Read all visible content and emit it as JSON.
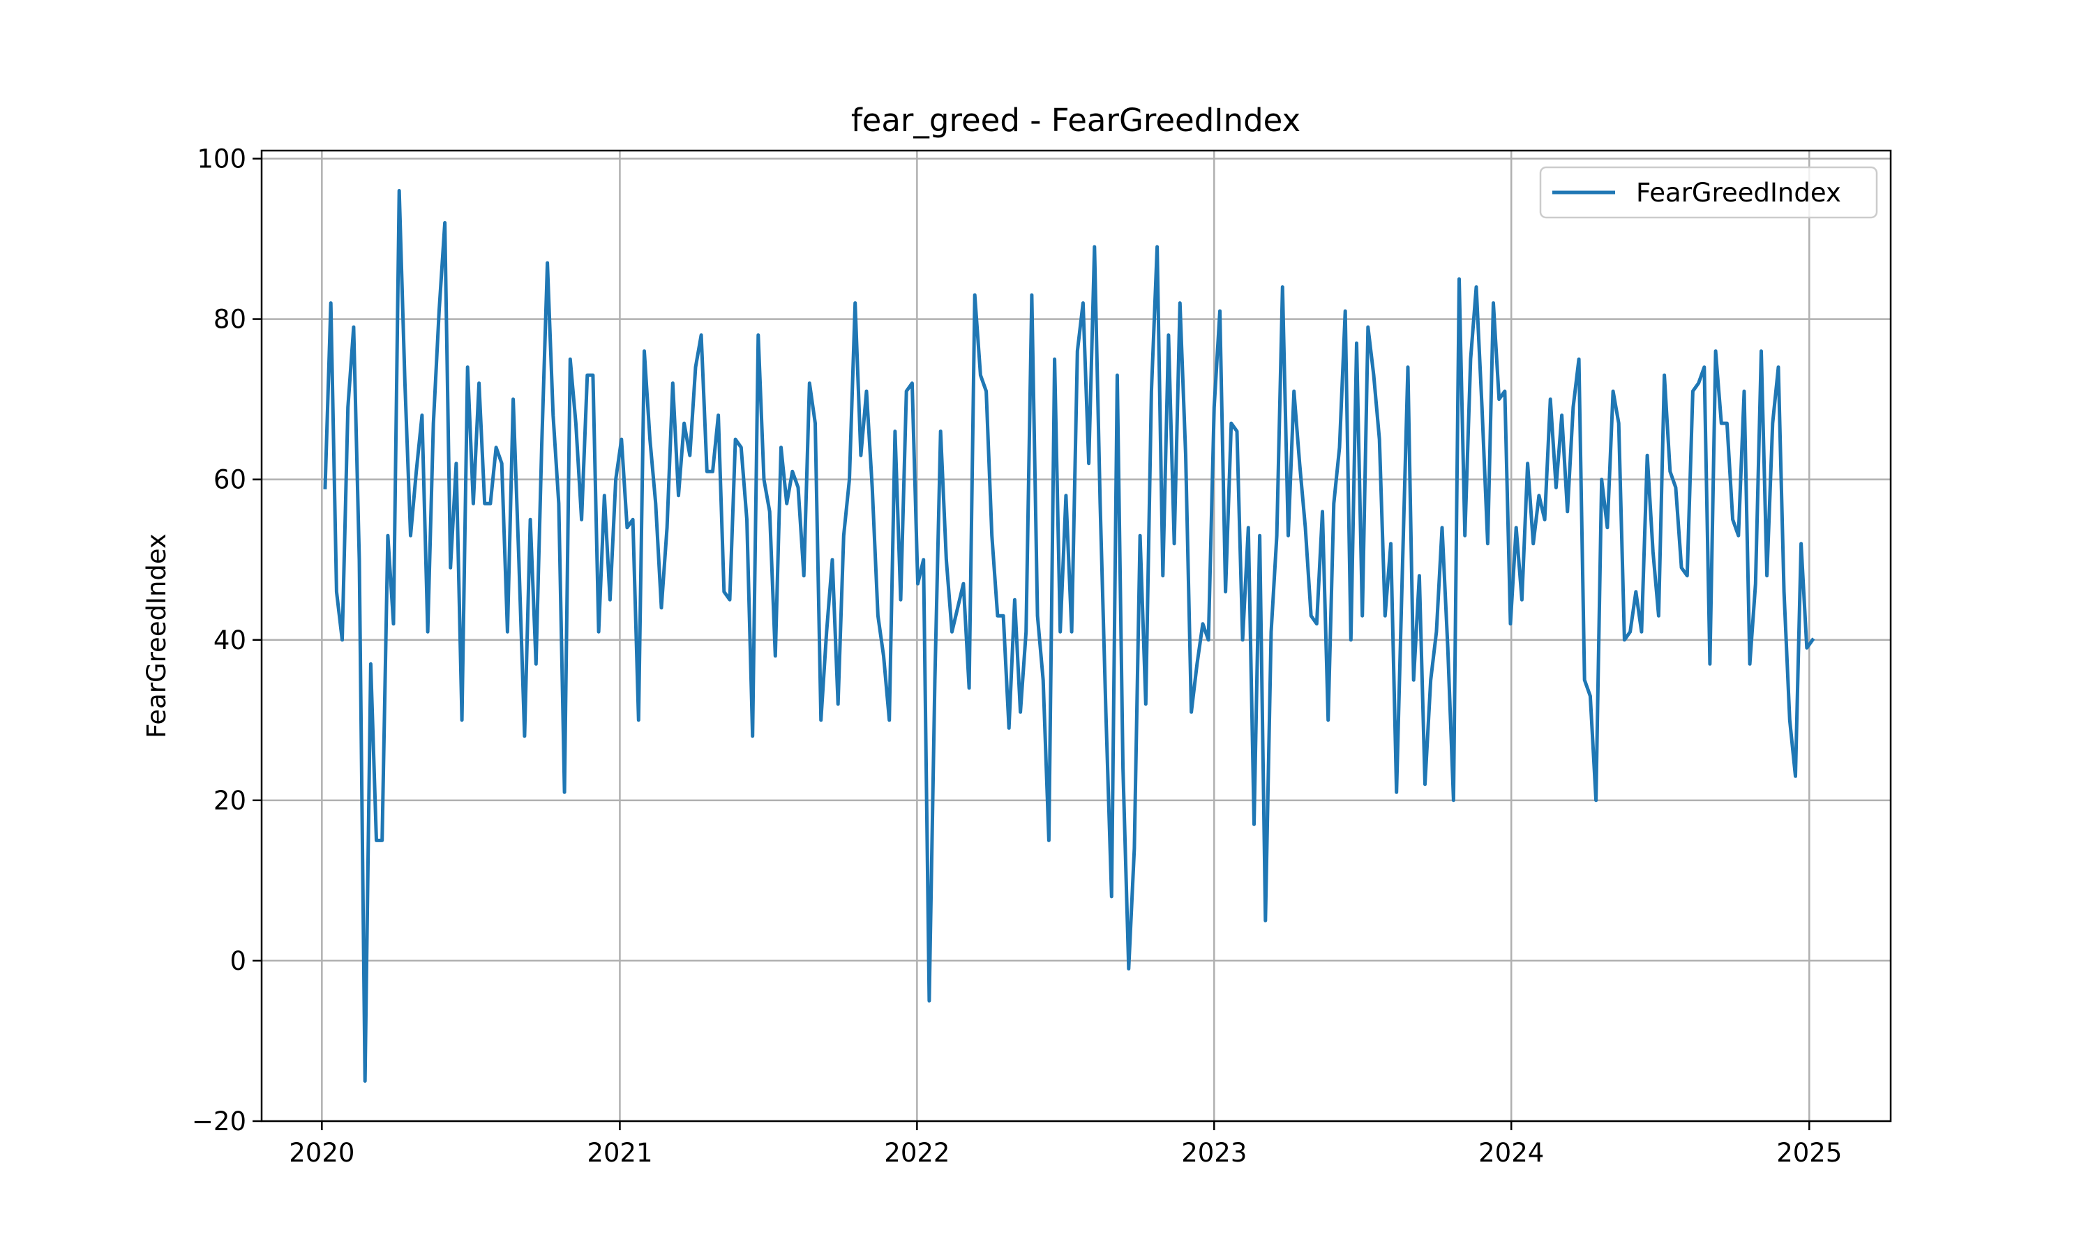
{
  "chart_data": {
    "type": "line",
    "title": "fear_greed - FearGreedIndex",
    "xlabel": "",
    "ylabel": "FearGreedIndex",
    "xlim": [
      "2019-10-19",
      "2025-04-11"
    ],
    "ylim": [
      -20,
      101
    ],
    "x_ticks": [
      "2020",
      "2021",
      "2022",
      "2023",
      "2024",
      "2025"
    ],
    "x_tick_dates": [
      "2020-01-01",
      "2021-01-01",
      "2022-01-01",
      "2023-01-01",
      "2024-01-01",
      "2025-01-01"
    ],
    "y_ticks": [
      -20,
      0,
      20,
      40,
      60,
      80,
      100
    ],
    "y_tick_labels": [
      "−20",
      "0",
      "20",
      "40",
      "60",
      "80",
      "100"
    ],
    "grid": true,
    "legend_position": "upper-right",
    "color": "#1f77b4",
    "series": [
      {
        "name": "FearGreedIndex",
        "start_date": "2020-01-05",
        "interval": "weekly",
        "values": [
          59,
          82,
          46,
          40,
          69,
          79,
          50,
          -15,
          37,
          15,
          15,
          53,
          42,
          96,
          72,
          53,
          61,
          68,
          41,
          67,
          81,
          92,
          49,
          62,
          30,
          74,
          57,
          72,
          57,
          57,
          64,
          62,
          41,
          70,
          50,
          28,
          55,
          37,
          64,
          87,
          68,
          57,
          21,
          75,
          67,
          55,
          73,
          73,
          41,
          58,
          45,
          60,
          65,
          54,
          55,
          30,
          76,
          65,
          57,
          44,
          54,
          72,
          58,
          67,
          63,
          74,
          78,
          61,
          61,
          68,
          46,
          45,
          65,
          64,
          55,
          28,
          78,
          60,
          56,
          38,
          64,
          57,
          61,
          59,
          48,
          72,
          67,
          30,
          41,
          50,
          32,
          53,
          60,
          82,
          63,
          71,
          59,
          43,
          38,
          30,
          66,
          45,
          71,
          72,
          47,
          50,
          -5,
          35,
          66,
          50,
          41,
          44,
          47,
          34,
          83,
          73,
          71,
          53,
          43,
          43,
          29,
          45,
          31,
          41,
          83,
          43,
          35,
          15,
          75,
          41,
          58,
          41,
          76,
          82,
          62,
          89,
          57,
          31,
          8,
          73,
          24,
          -1,
          14,
          53,
          32,
          71,
          89,
          48,
          78,
          52,
          82,
          63,
          31,
          37,
          42,
          40,
          69,
          81,
          46,
          67,
          66,
          40,
          54,
          17,
          53,
          5,
          41,
          53,
          84,
          53,
          71,
          62,
          54,
          43,
          42,
          56,
          30,
          57,
          64,
          81,
          40,
          77,
          43,
          79,
          73,
          65,
          43,
          52,
          21,
          48,
          74,
          35,
          48,
          22,
          35,
          41,
          54,
          39,
          20,
          85,
          53,
          75,
          84,
          69,
          52,
          82,
          70,
          71,
          42,
          54,
          45,
          62,
          52,
          58,
          55,
          70,
          59,
          68,
          56,
          69,
          75,
          35,
          33,
          20,
          60,
          54,
          71,
          67,
          40,
          41,
          46,
          41,
          63,
          51,
          43,
          73,
          61,
          59,
          49,
          48,
          71,
          72,
          74,
          37,
          76,
          67,
          67,
          55,
          53,
          71,
          37,
          47,
          76,
          48,
          67,
          74,
          46,
          30,
          23,
          52,
          39,
          40
        ]
      }
    ]
  }
}
